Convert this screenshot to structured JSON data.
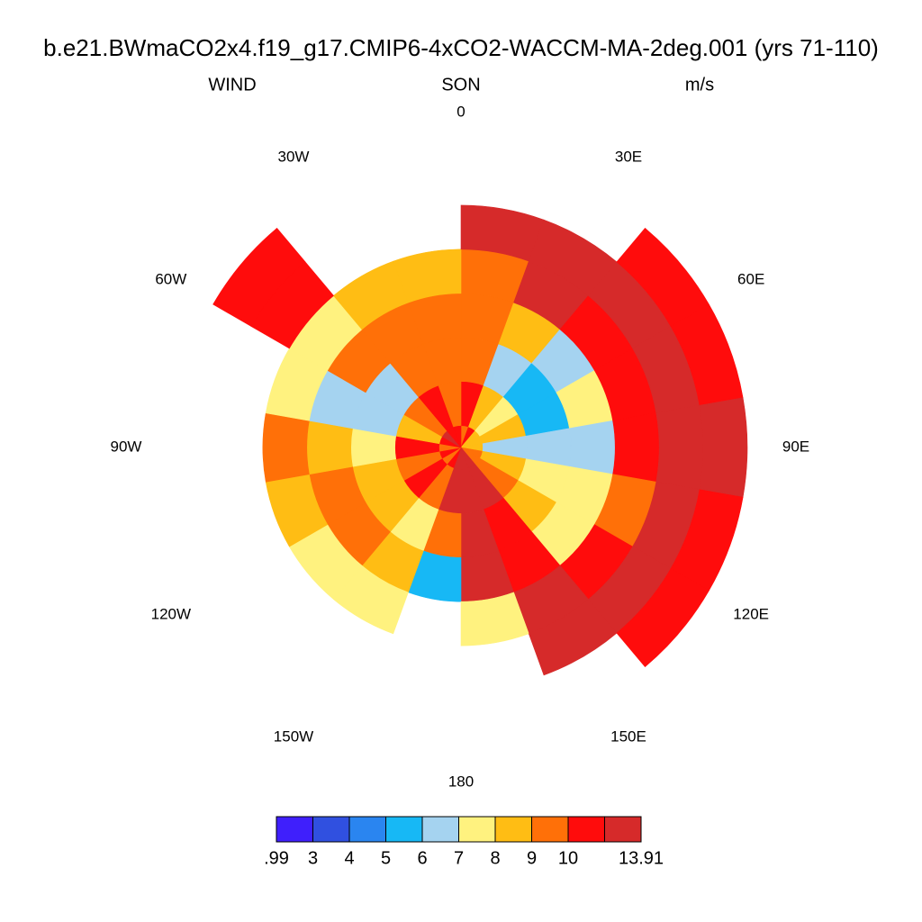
{
  "chart_data": {
    "type": "polar-field",
    "title": "b.e21.BWmaCO2x4.f19_g17.CMIP6-4xCO2-WACCM-MA-2deg.001 (yrs 71-110)",
    "left_string": "WIND",
    "center_string": "SON",
    "right_string": "m/s",
    "lon_labels": [
      {
        "value": 0,
        "label": "0"
      },
      {
        "value": 30,
        "label": "30E"
      },
      {
        "value": 60,
        "label": "60E"
      },
      {
        "value": 90,
        "label": "90E"
      },
      {
        "value": 120,
        "label": "120E"
      },
      {
        "value": 150,
        "label": "150E"
      },
      {
        "value": 180,
        "label": "180"
      },
      {
        "value": 210,
        "label": "150W"
      },
      {
        "value": 240,
        "label": "120W"
      },
      {
        "value": 270,
        "label": "90W"
      },
      {
        "value": 300,
        "label": "60W"
      },
      {
        "value": 330,
        "label": "30W"
      }
    ],
    "lat_edges": [
      -90,
      -88,
      -84,
      -80,
      -76,
      -72,
      -68,
      -64
    ],
    "lon_edges": [
      0,
      20,
      40,
      60,
      80,
      100,
      120,
      140,
      160,
      180,
      200,
      220,
      240,
      260,
      280,
      300,
      320,
      340,
      360
    ],
    "values": [
      [
        9.5,
        10.5,
        8,
        8.5,
        8.5,
        9.5,
        9.5,
        12,
        12.5,
        12.5,
        10.5,
        9.5,
        10.5,
        9.5,
        10.5,
        12,
        10.5,
        11
      ],
      [
        10.5,
        8,
        7.5,
        8,
        6.5,
        8.5,
        9.5,
        12.5,
        12.5,
        12.5,
        9.5,
        10.5,
        9.5,
        10.5,
        8.5,
        9.5,
        10.5,
        9.5
      ],
      [
        9.5,
        6.5,
        5.5,
        5.5,
        6.5,
        7.5,
        8.5,
        10.5,
        12.5,
        9.5,
        7.5,
        8.5,
        8.5,
        7.5,
        6.5,
        6.5,
        9.5,
        9.5
      ],
      [
        9.5,
        8.5,
        6.5,
        7.5,
        6.5,
        7.5,
        7.5,
        11,
        12,
        5.5,
        8.5,
        9.5,
        9.5,
        8.5,
        6.5,
        9.5,
        9.5,
        9.5
      ],
      [
        9.5,
        12,
        11,
        10.5,
        10.5,
        9.5,
        10.5,
        12.5,
        7.5,
        null,
        7.5,
        7.5,
        8.5,
        9.5,
        7.5,
        7.5,
        8.5,
        8.5
      ],
      [
        12,
        12.5,
        12.5,
        12.5,
        12.5,
        12.5,
        12.5,
        12.5,
        null,
        null,
        null,
        null,
        null,
        null,
        null,
        10.5,
        null,
        null
      ],
      [
        null,
        null,
        11,
        11,
        12.5,
        11,
        11,
        null,
        null,
        null,
        null,
        null,
        null,
        null,
        null,
        11,
        null,
        null
      ]
    ],
    "levels": [
      {
        "value": 0.99,
        "label": ".99"
      },
      3,
      4,
      5,
      6,
      7,
      8,
      9,
      10,
      null,
      13.91
    ],
    "colors": [
      "#3f1ffc",
      "#3050e0",
      "#2a85f0",
      "#17b8f5",
      "#a5d3f0",
      "#fff27f",
      "#ffbd14",
      "#ff7008",
      "#ff0c0c",
      "#d62a2a"
    ]
  }
}
